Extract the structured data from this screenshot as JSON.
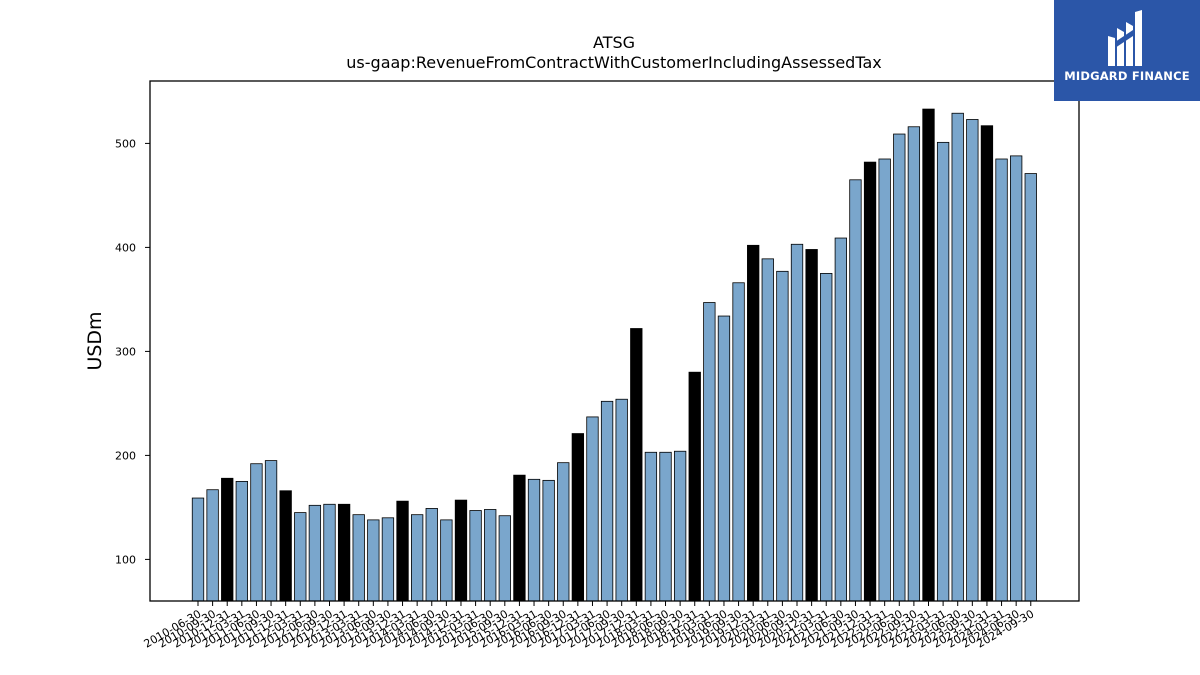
{
  "brand": {
    "name": "MIDGARD FINANCE",
    "bg_color": "#2b56a8",
    "icon": "midgard-m-logo-icon"
  },
  "chart_data": {
    "type": "bar",
    "title": "ATSG",
    "subtitle": "us-gaap:RevenueFromContractWithCustomerIncludingAssessedTax",
    "xlabel": "",
    "ylabel": "USDm",
    "ylim": [
      60,
      560
    ],
    "yticks": [
      100,
      200,
      300,
      400,
      500
    ],
    "grid": false,
    "colors": {
      "quarter": "#7aa6cc",
      "year_end": "#000000",
      "edge": "#000000"
    },
    "categories": [
      "2010-06-30",
      "2010-09-30",
      "2010-12-31",
      "2011-03-31",
      "2011-06-30",
      "2011-09-30",
      "2011-12-31",
      "2012-03-31",
      "2012-06-30",
      "2012-09-30",
      "2012-12-31",
      "2013-03-31",
      "2013-06-30",
      "2013-09-30",
      "2013-12-31",
      "2014-03-31",
      "2014-06-30",
      "2014-09-30",
      "2014-12-31",
      "2015-03-31",
      "2015-06-30",
      "2015-09-30",
      "2015-12-31",
      "2016-03-31",
      "2016-06-30",
      "2016-09-30",
      "2016-12-31",
      "2017-03-31",
      "2017-06-30",
      "2017-09-30",
      "2017-12-31",
      "2018-03-31",
      "2018-06-30",
      "2018-09-30",
      "2018-12-31",
      "2019-03-31",
      "2019-06-30",
      "2019-09-30",
      "2019-12-31",
      "2020-03-31",
      "2020-06-30",
      "2020-09-30",
      "2020-12-31",
      "2021-03-31",
      "2021-06-30",
      "2021-09-30",
      "2021-12-31",
      "2022-03-31",
      "2022-06-30",
      "2022-09-30",
      "2022-12-31",
      "2023-03-31",
      "2023-06-30",
      "2023-09-30",
      "2023-12-31",
      "2024-03-31",
      "2024-06-30",
      "2024-09-30"
    ],
    "values": [
      159,
      167,
      178,
      175,
      192,
      195,
      166,
      145,
      152,
      153,
      153,
      143,
      138,
      140,
      156,
      143,
      149,
      138,
      157,
      147,
      148,
      142,
      181,
      177,
      176,
      193,
      221,
      237,
      252,
      254,
      322,
      203,
      203,
      204,
      280,
      347,
      334,
      366,
      402,
      389,
      377,
      403,
      398,
      375,
      409,
      465,
      482,
      485,
      509,
      516,
      533,
      501,
      529,
      523,
      517,
      485,
      488,
      471
    ],
    "year_end_flags": [
      0,
      0,
      1,
      0,
      0,
      0,
      1,
      0,
      0,
      0,
      1,
      0,
      0,
      0,
      1,
      0,
      0,
      0,
      1,
      0,
      0,
      0,
      1,
      0,
      0,
      0,
      1,
      0,
      0,
      0,
      1,
      0,
      0,
      0,
      1,
      0,
      0,
      0,
      1,
      0,
      0,
      0,
      1,
      0,
      0,
      0,
      1,
      0,
      0,
      0,
      1,
      0,
      0,
      0,
      1,
      0,
      0,
      0
    ]
  }
}
